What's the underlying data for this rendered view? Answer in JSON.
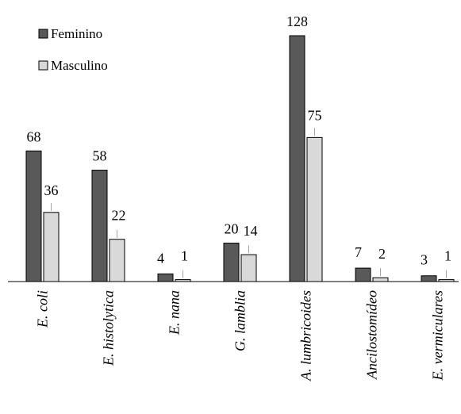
{
  "chart_data": {
    "type": "bar",
    "title": "",
    "xlabel": "",
    "ylabel": "",
    "ylim": [
      0,
      130
    ],
    "grid": false,
    "legend": "top-left",
    "categories": [
      "E. coli",
      "E. histolytica",
      "E. nana",
      "G. lamblia",
      "A. lumbricoides",
      "Ancilostomídeo",
      "E. vermiculares"
    ],
    "series": [
      {
        "name": "Feminino",
        "values": [
          68,
          58,
          4,
          20,
          128,
          7,
          3
        ],
        "color": "#595959"
      },
      {
        "name": "Masculino",
        "values": [
          36,
          22,
          1,
          14,
          75,
          2,
          1
        ],
        "color": "#d9d9d9"
      }
    ]
  }
}
